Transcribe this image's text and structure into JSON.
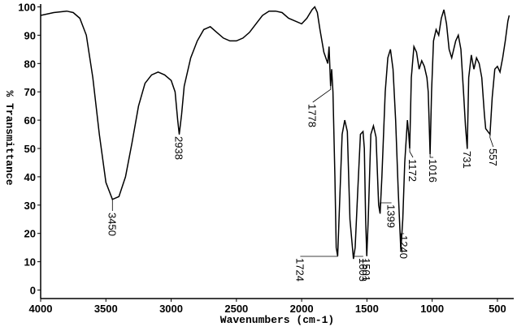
{
  "chart_data": {
    "type": "line",
    "xlabel": "Wavenumbers (cm-1)",
    "ylabel": "% Transmittance",
    "xlim": [
      4000,
      375
    ],
    "ylim": [
      -3,
      101
    ],
    "xticks": [
      4000,
      3500,
      3000,
      2500,
      2000,
      1500,
      1000,
      500
    ],
    "yticks": [
      0,
      10,
      20,
      30,
      40,
      50,
      60,
      70,
      80,
      90,
      100
    ],
    "color": "#000000",
    "x": [
      4000,
      3900,
      3800,
      3750,
      3700,
      3650,
      3600,
      3550,
      3500,
      3450,
      3400,
      3350,
      3300,
      3250,
      3200,
      3150,
      3100,
      3050,
      3000,
      2970,
      2950,
      2938,
      2920,
      2900,
      2850,
      2800,
      2750,
      2700,
      2650,
      2600,
      2550,
      2500,
      2450,
      2400,
      2350,
      2300,
      2250,
      2200,
      2150,
      2100,
      2050,
      2000,
      1960,
      1920,
      1900,
      1880,
      1860,
      1830,
      1800,
      1790,
      1778,
      1770,
      1760,
      1745,
      1735,
      1724,
      1710,
      1690,
      1670,
      1650,
      1630,
      1603,
      1590,
      1570,
      1550,
      1530,
      1520,
      1510,
      1501,
      1490,
      1470,
      1450,
      1430,
      1410,
      1399,
      1385,
      1360,
      1340,
      1320,
      1300,
      1280,
      1260,
      1240,
      1225,
      1210,
      1190,
      1180,
      1172,
      1160,
      1140,
      1120,
      1100,
      1080,
      1060,
      1040,
      1030,
      1016,
      1005,
      990,
      970,
      950,
      930,
      910,
      890,
      870,
      850,
      820,
      800,
      780,
      760,
      745,
      731,
      720,
      700,
      680,
      660,
      640,
      620,
      600,
      590,
      557,
      540,
      520,
      500,
      480,
      460,
      440,
      420,
      410
    ],
    "values": [
      97,
      98,
      98.5,
      98,
      96,
      90,
      75,
      55,
      38,
      32,
      33,
      40,
      52,
      65,
      73,
      76,
      77,
      76,
      74,
      70,
      60,
      55,
      62,
      72,
      82,
      88,
      92,
      93,
      91,
      89,
      88,
      88,
      89,
      91,
      94,
      97,
      98.5,
      98.5,
      98,
      96,
      95,
      94,
      96,
      99,
      100,
      98,
      92,
      84,
      80,
      86,
      72,
      78,
      70,
      40,
      15,
      12,
      30,
      55,
      60,
      56,
      25,
      11,
      15,
      35,
      55,
      56,
      50,
      25,
      12,
      25,
      55,
      58,
      54,
      30,
      27,
      40,
      70,
      82,
      85,
      78,
      60,
      35,
      14,
      25,
      45,
      60,
      55,
      50,
      75,
      86,
      84,
      78,
      81,
      79,
      75,
      70,
      48,
      70,
      88,
      92,
      90,
      96,
      99,
      94,
      85,
      82,
      88,
      90,
      85,
      70,
      58,
      50,
      75,
      83,
      78,
      82,
      80,
      75,
      62,
      57,
      55,
      68,
      78,
      79,
      77,
      82,
      88,
      95,
      97
    ],
    "peak_labels": [
      3450,
      2938,
      1778,
      1724,
      1603,
      1501,
      1399,
      1240,
      1172,
      1016,
      731,
      557
    ]
  }
}
